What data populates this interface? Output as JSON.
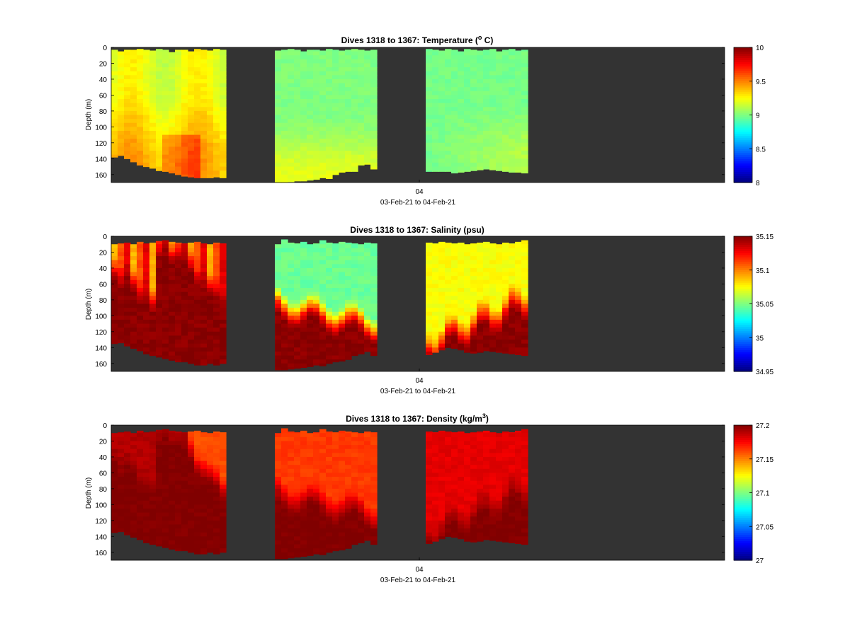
{
  "figure": {
    "date_range_label": "03-Feb-21 to 04-Feb-21",
    "x_tick_label": "04",
    "ylabel": "Depth (m)",
    "background_color": "#333333",
    "colormap": "jet"
  },
  "chart_data": [
    {
      "type": "heatmap",
      "title_main": "Dives 1318 to 1367: Temperature (",
      "title_sup": "o",
      "title_end": " C)",
      "xlabel": "03-Feb-21 to 04-Feb-21",
      "ylabel": "Depth (m)",
      "ylim": [
        0,
        170
      ],
      "y_ticks": [
        "0",
        "20",
        "40",
        "60",
        "80",
        "100",
        "120",
        "140",
        "160"
      ],
      "x_ticks": [
        "04"
      ],
      "colorbar": {
        "range": [
          8,
          10
        ],
        "ticks": [
          "8",
          "8.5",
          "9",
          "9.5",
          "10"
        ]
      },
      "profiles": 50,
      "gaps_after_profile": [
        17,
        33
      ],
      "surface_gap_m": [
        3,
        5,
        3,
        3,
        2,
        3,
        4,
        2,
        3,
        6,
        3,
        3,
        5,
        2,
        3,
        4,
        2,
        3,
        4,
        3,
        2,
        3,
        5,
        3,
        3,
        4,
        2,
        3,
        4,
        3,
        2,
        3,
        4,
        3,
        2,
        3,
        4,
        2,
        3,
        5,
        2,
        3,
        4,
        3,
        2,
        5,
        3,
        2,
        4,
        3
      ],
      "bottom_depth_m": [
        138,
        136,
        140,
        144,
        148,
        150,
        152,
        155,
        156,
        158,
        160,
        162,
        163,
        164,
        164,
        164,
        163,
        164,
        170,
        170,
        169,
        168,
        168,
        167,
        166,
        164,
        165,
        160,
        157,
        156,
        156,
        148,
        147,
        153,
        156,
        156,
        156,
        156,
        158,
        157,
        156,
        155,
        154,
        153,
        154,
        155,
        156,
        157,
        157,
        158
      ],
      "field": "temperature"
    },
    {
      "type": "heatmap",
      "title_main": "Dives 1318 to 1367: Salinity (psu)",
      "title_sup": "",
      "title_end": "",
      "xlabel": "03-Feb-21 to 04-Feb-21",
      "ylabel": "Depth (m)",
      "ylim": [
        0,
        170
      ],
      "y_ticks": [
        "0",
        "20",
        "40",
        "60",
        "80",
        "100",
        "120",
        "140",
        "160"
      ],
      "x_ticks": [
        "04"
      ],
      "colorbar": {
        "range": [
          34.95,
          35.15
        ],
        "ticks": [
          "34.95",
          "35",
          "35.05",
          "35.1",
          "35.15"
        ]
      },
      "profiles": 50,
      "gaps_after_profile": [
        17,
        33
      ],
      "surface_gap_m": [
        10,
        9,
        8,
        10,
        7,
        9,
        8,
        6,
        5,
        7,
        8,
        9,
        8,
        7,
        9,
        10,
        8,
        9,
        10,
        4,
        8,
        9,
        7,
        10,
        9,
        5,
        8,
        9,
        7,
        8,
        9,
        10,
        8,
        9,
        8,
        9,
        7,
        8,
        9,
        8,
        10,
        9,
        8,
        7,
        9,
        10,
        8,
        9,
        7,
        5
      ],
      "bottom_depth_m": [
        135,
        134,
        138,
        141,
        144,
        148,
        150,
        152,
        154,
        156,
        158,
        158,
        160,
        162,
        162,
        160,
        162,
        160,
        168,
        168,
        167,
        166,
        165,
        164,
        162,
        163,
        160,
        158,
        157,
        155,
        150,
        148,
        145,
        150,
        149,
        146,
        143,
        140,
        141,
        143,
        146,
        147,
        146,
        144,
        145,
        146,
        147,
        148,
        149,
        150
      ],
      "field": "salinity"
    },
    {
      "type": "heatmap",
      "title_main": "Dives 1318 to 1367: Density (kg/m",
      "title_sup": "3",
      "title_end": ")",
      "xlabel": "03-Feb-21 to 04-Feb-21",
      "ylabel": "Depth (m)",
      "ylim": [
        0,
        170
      ],
      "y_ticks": [
        "0",
        "20",
        "40",
        "60",
        "80",
        "100",
        "120",
        "140",
        "160"
      ],
      "x_ticks": [
        "04"
      ],
      "colorbar": {
        "range": [
          27,
          27.2
        ],
        "ticks": [
          "27",
          "27.05",
          "27.1",
          "27.15",
          "27.2"
        ]
      },
      "profiles": 50,
      "gaps_after_profile": [
        17,
        33
      ],
      "surface_gap_m": [
        10,
        9,
        8,
        10,
        7,
        9,
        8,
        6,
        5,
        7,
        8,
        9,
        8,
        7,
        9,
        10,
        8,
        9,
        10,
        4,
        8,
        9,
        7,
        10,
        9,
        5,
        8,
        9,
        7,
        8,
        9,
        10,
        8,
        9,
        8,
        9,
        7,
        8,
        9,
        8,
        10,
        9,
        8,
        7,
        9,
        10,
        8,
        9,
        7,
        5
      ],
      "bottom_depth_m": [
        135,
        134,
        138,
        141,
        144,
        148,
        150,
        152,
        154,
        156,
        158,
        158,
        160,
        162,
        162,
        160,
        162,
        160,
        168,
        168,
        167,
        166,
        165,
        164,
        162,
        163,
        160,
        158,
        157,
        155,
        150,
        148,
        145,
        150,
        149,
        146,
        143,
        140,
        141,
        143,
        146,
        147,
        146,
        144,
        145,
        146,
        147,
        148,
        149,
        150
      ],
      "field": "density"
    }
  ]
}
